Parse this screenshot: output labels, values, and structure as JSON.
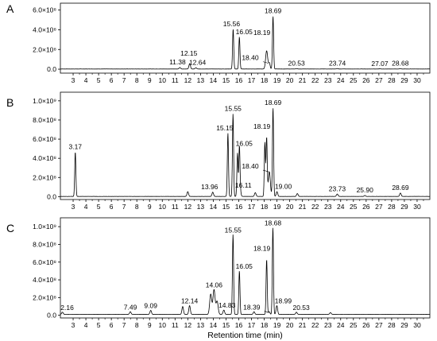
{
  "chart_data": [
    {
      "type": "line",
      "panel_label": "A",
      "xlim": [
        2,
        31
      ],
      "ylim": [
        -40000000.0,
        670000000.0
      ],
      "x_ticks": [
        "3",
        "4",
        "5",
        "6",
        "7",
        "8",
        "9",
        "10",
        "11",
        "12",
        "13",
        "14",
        "15",
        "16",
        "17",
        "18",
        "19",
        "20",
        "21",
        "22",
        "23",
        "24",
        "25",
        "26",
        "27",
        "28",
        "29",
        "30"
      ],
      "y_ticks": [
        {
          "value": 0,
          "label": "0.0"
        },
        {
          "value": 200000000.0,
          "label": "2.0×10⁸"
        },
        {
          "value": 400000000.0,
          "label": "4.0×10⁸"
        },
        {
          "value": 600000000.0,
          "label": "6.0×10⁸"
        }
      ],
      "baseline": 2000000.0,
      "peaks": [
        {
          "rt": 11.38,
          "height": 15000000.0,
          "label": "11.38"
        },
        {
          "rt": 12.15,
          "height": 55000000.0,
          "label": "12.15"
        },
        {
          "rt": 12.64,
          "height": 12000000.0,
          "label": "12.64"
        },
        {
          "rt": 15.56,
          "height": 405000000.0,
          "label": "15.56"
        },
        {
          "rt": 16.05,
          "height": 325000000.0,
          "label": "16.05"
        },
        {
          "rt": 18.19,
          "height": 185000000.0,
          "label": "18.19"
        },
        {
          "rt": 18.4,
          "height": 60000000.0,
          "label": "18.40"
        },
        {
          "rt": 18.69,
          "height": 535000000.0,
          "label": "18.69"
        },
        {
          "rt": 20.53,
          "height": 4000000.0,
          "label": "20.53"
        },
        {
          "rt": 23.74,
          "height": 4000000.0,
          "label": "23.74"
        },
        {
          "rt": 27.07,
          "height": 2000000.0,
          "label": "27.07"
        },
        {
          "rt": 28.68,
          "height": 4000000.0,
          "label": "28.68"
        }
      ]
    },
    {
      "type": "line",
      "panel_label": "B",
      "xlim": [
        2,
        31
      ],
      "ylim": [
        -30000000.0,
        1090000000.0
      ],
      "x_ticks": [
        "3",
        "4",
        "5",
        "6",
        "7",
        "8",
        "9",
        "10",
        "11",
        "12",
        "13",
        "14",
        "15",
        "16",
        "17",
        "18",
        "19",
        "20",
        "21",
        "22",
        "23",
        "24",
        "25",
        "26",
        "27",
        "28",
        "29",
        "30"
      ],
      "y_ticks": [
        {
          "value": 0,
          "label": "0.0"
        },
        {
          "value": 200000000.0,
          "label": "2.0×10⁸"
        },
        {
          "value": 400000000.0,
          "label": "4.0×10⁸"
        },
        {
          "value": 600000000.0,
          "label": "6.0×10⁸"
        },
        {
          "value": 800000000.0,
          "label": "8.0×10⁸"
        },
        {
          "value": 1000000000.0,
          "label": "1.0×10⁹"
        }
      ],
      "baseline": 2000000.0,
      "peaks": [
        {
          "rt": 3.17,
          "height": 465000000.0,
          "label": "3.17"
        },
        {
          "rt": 12.0,
          "height": 50000000.0,
          "label": ""
        },
        {
          "rt": 13.96,
          "height": 45000000.0,
          "label": "13.96"
        },
        {
          "rt": 15.15,
          "height": 660000000.0,
          "label": "15.15"
        },
        {
          "rt": 15.55,
          "height": 860000000.0,
          "label": "15.55"
        },
        {
          "rt": 15.9,
          "height": 450000000.0,
          "label": ""
        },
        {
          "rt": 16.05,
          "height": 495000000.0,
          "label": "16.05"
        },
        {
          "rt": 16.11,
          "height": 60000000.0,
          "label": "16.11"
        },
        {
          "rt": 17.3,
          "height": 40000000.0,
          "label": ""
        },
        {
          "rt": 18.05,
          "height": 560000000.0,
          "label": ""
        },
        {
          "rt": 18.19,
          "height": 610000000.0,
          "label": "18.19"
        },
        {
          "rt": 18.4,
          "height": 260000000.0,
          "label": "18.40"
        },
        {
          "rt": 18.69,
          "height": 925000000.0,
          "label": "18.69"
        },
        {
          "rt": 19.0,
          "height": 50000000.0,
          "label": "19.00"
        },
        {
          "rt": 20.6,
          "height": 30000000.0,
          "label": ""
        },
        {
          "rt": 23.73,
          "height": 25000000.0,
          "label": "23.73"
        },
        {
          "rt": 25.9,
          "height": 10000000.0,
          "label": "25.90"
        },
        {
          "rt": 28.69,
          "height": 35000000.0,
          "label": "28.69"
        }
      ]
    },
    {
      "type": "line",
      "panel_label": "C",
      "xlim": [
        2,
        31
      ],
      "ylim": [
        -30000000.0,
        1100000000.0
      ],
      "x_ticks": [
        "3",
        "4",
        "5",
        "6",
        "7",
        "8",
        "9",
        "10",
        "11",
        "12",
        "13",
        "14",
        "15",
        "16",
        "17",
        "18",
        "19",
        "20",
        "21",
        "22",
        "23",
        "24",
        "25",
        "26",
        "27",
        "28",
        "29",
        "30"
      ],
      "y_ticks": [
        {
          "value": 0,
          "label": "0.0"
        },
        {
          "value": 200000000.0,
          "label": "2.0×10⁸"
        },
        {
          "value": 400000000.0,
          "label": "4.0×10⁸"
        },
        {
          "value": 600000000.0,
          "label": "6.0×10⁸"
        },
        {
          "value": 800000000.0,
          "label": "8.0×10⁸"
        },
        {
          "value": 1000000000.0,
          "label": "1.0×10⁹"
        }
      ],
      "xlabel": "Retention time (min)",
      "baseline": 10000000.0,
      "peaks": [
        {
          "rt": 2.16,
          "height": 25000000.0,
          "label": "2.16"
        },
        {
          "rt": 7.49,
          "height": 30000000.0,
          "label": "7.49"
        },
        {
          "rt": 9.09,
          "height": 45000000.0,
          "label": "9.09"
        },
        {
          "rt": 11.6,
          "height": 90000000.0,
          "label": ""
        },
        {
          "rt": 12.14,
          "height": 100000000.0,
          "label": "12.14"
        },
        {
          "rt": 13.8,
          "height": 230000000.0,
          "label": ""
        },
        {
          "rt": 14.06,
          "height": 280000000.0,
          "label": "14.06"
        },
        {
          "rt": 14.3,
          "height": 150000000.0,
          "label": ""
        },
        {
          "rt": 14.83,
          "height": 50000000.0,
          "label": "14.83"
        },
        {
          "rt": 15.55,
          "height": 900000000.0,
          "label": "15.55"
        },
        {
          "rt": 16.05,
          "height": 490000000.0,
          "label": "16.05"
        },
        {
          "rt": 17.2,
          "height": 30000000.0,
          "label": ""
        },
        {
          "rt": 18.19,
          "height": 620000000.0,
          "label": "18.19"
        },
        {
          "rt": 18.39,
          "height": 30000000.0,
          "label": "18.39"
        },
        {
          "rt": 18.68,
          "height": 980000000.0,
          "label": "18.68"
        },
        {
          "rt": 18.99,
          "height": 100000000.0,
          "label": "18.99"
        },
        {
          "rt": 20.53,
          "height": 25000000.0,
          "label": "20.53"
        },
        {
          "rt": 23.2,
          "height": 20000000.0,
          "label": ""
        }
      ]
    }
  ]
}
